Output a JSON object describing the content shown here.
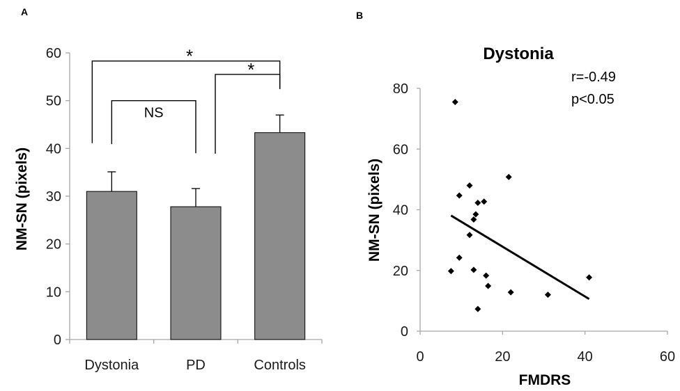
{
  "chart_data": [
    {
      "panel_label": "A",
      "type": "bar",
      "title": "",
      "xlabel": "",
      "ylabel": "NM-SN (pixels)",
      "ylim": [
        0,
        60
      ],
      "yticks": [
        "0",
        "10",
        "20",
        "30",
        "40",
        "50",
        "60"
      ],
      "categories": [
        "Dystonia",
        "PD",
        "Controls"
      ],
      "values": [
        31,
        27.8,
        43.3
      ],
      "errors": [
        4.1,
        3.8,
        3.7
      ],
      "bar_color": "#8c8c8c",
      "brackets": [
        {
          "from": 0,
          "to": 1,
          "label": "NS",
          "level": 50
        },
        {
          "from": 1,
          "to": 2,
          "label": "*",
          "level": 55.5
        },
        {
          "from": 0,
          "to": 2,
          "label": "*",
          "level": 58.3
        }
      ]
    },
    {
      "panel_label": "B",
      "type": "scatter",
      "title": "Dystonia",
      "xlabel": "FMDRS",
      "ylabel": "NM-SN (pixels)",
      "xlim": [
        0,
        60
      ],
      "ylim": [
        0,
        80
      ],
      "xticks": [
        "0",
        "20",
        "40",
        "60"
      ],
      "yticks": [
        "0",
        "20",
        "40",
        "60",
        "80"
      ],
      "points": [
        [
          8.5,
          75.5
        ],
        [
          9.5,
          44.7
        ],
        [
          12,
          48
        ],
        [
          14,
          42.3
        ],
        [
          15.5,
          42.7
        ],
        [
          13.5,
          38.5
        ],
        [
          13,
          36.8
        ],
        [
          12,
          31.7
        ],
        [
          21.5,
          50.8
        ],
        [
          9.5,
          24.2
        ],
        [
          7.5,
          19.8
        ],
        [
          13,
          20.2
        ],
        [
          16,
          18.3
        ],
        [
          16.5,
          14.9
        ],
        [
          22,
          12.8
        ],
        [
          31,
          12
        ],
        [
          41,
          17.7
        ],
        [
          14,
          7.3
        ]
      ],
      "trendline": {
        "x": [
          7.5,
          41
        ],
        "y": [
          38.1,
          10.6
        ]
      },
      "annotations": [
        "r=-0.49",
        "p<0.05"
      ]
    }
  ]
}
